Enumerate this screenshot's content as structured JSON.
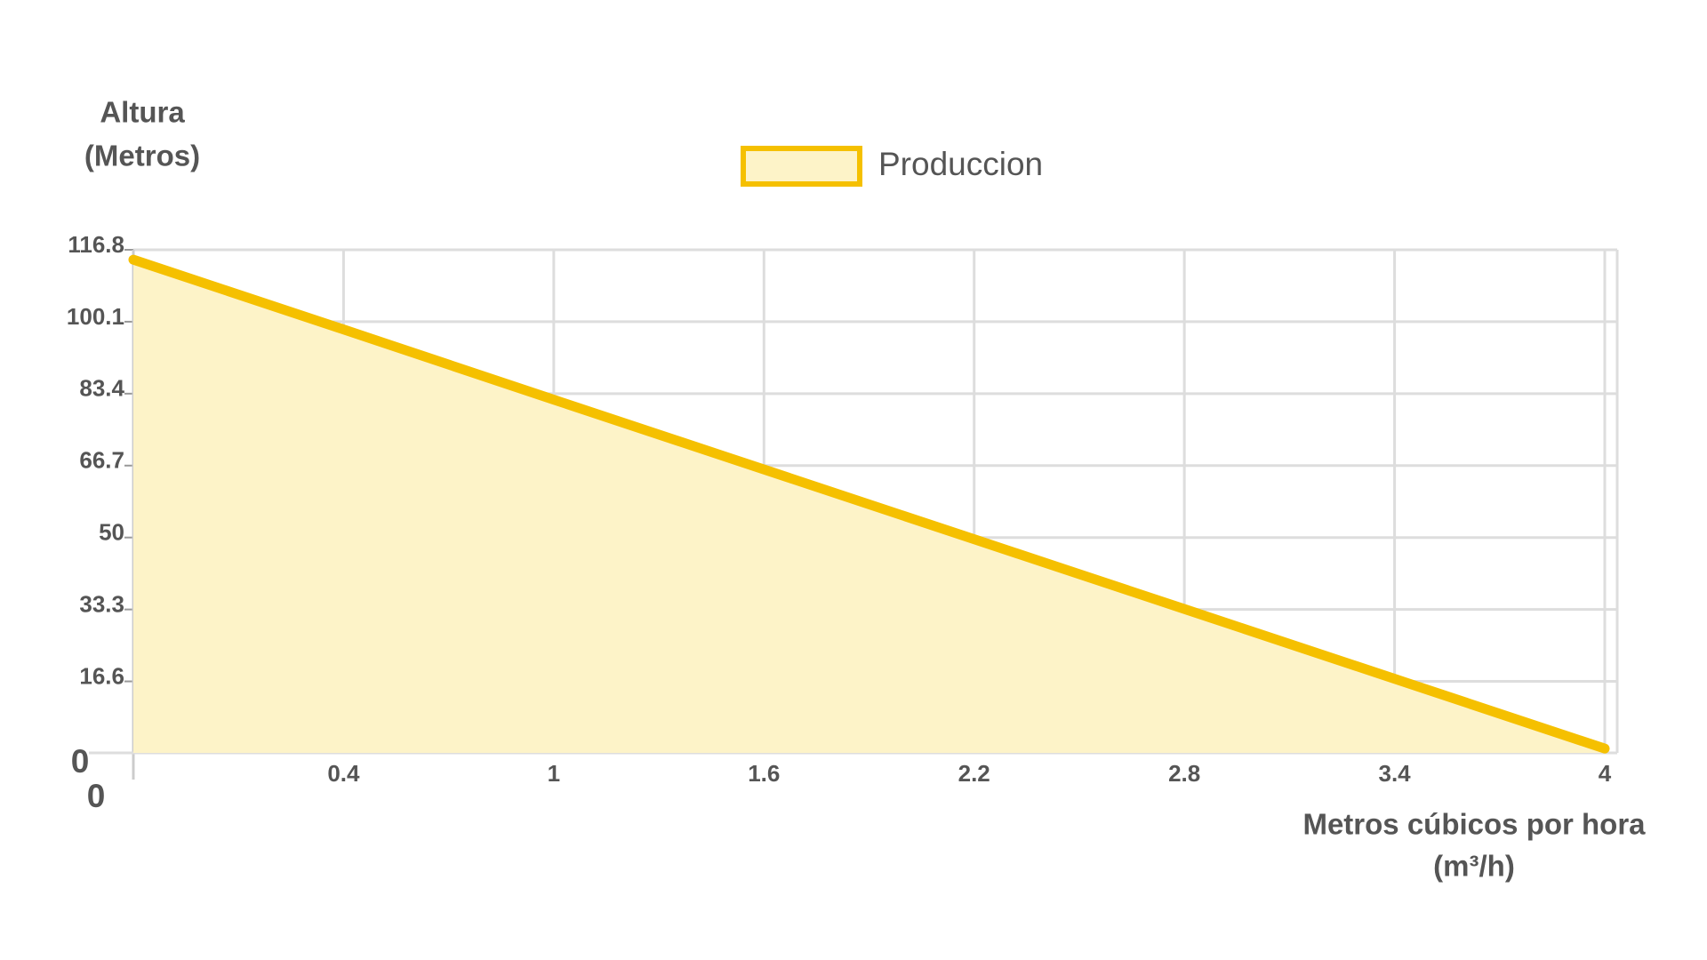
{
  "chart_data": {
    "type": "area",
    "categories": [
      "0",
      "0.4",
      "1",
      "1.6",
      "2.2",
      "2.8",
      "3.4",
      "4"
    ],
    "series": [
      {
        "name": "Produccion",
        "color": "#f5c000",
        "fill": "#fdf3c8",
        "values": [
          114.5,
          98.3,
          82,
          65.8,
          49.6,
          33.4,
          17.2,
          1
        ]
      }
    ],
    "ylim": [
      0,
      116.8
    ],
    "yticks": [
      0,
      16.6,
      33.3,
      50,
      66.7,
      83.4,
      100.1,
      116.8
    ],
    "y_label": [
      "Altura",
      "(Metros)"
    ],
    "x_label": [
      "Metros cúbicos por hora",
      "(m³/h)"
    ],
    "grid": true,
    "legend": "top"
  }
}
